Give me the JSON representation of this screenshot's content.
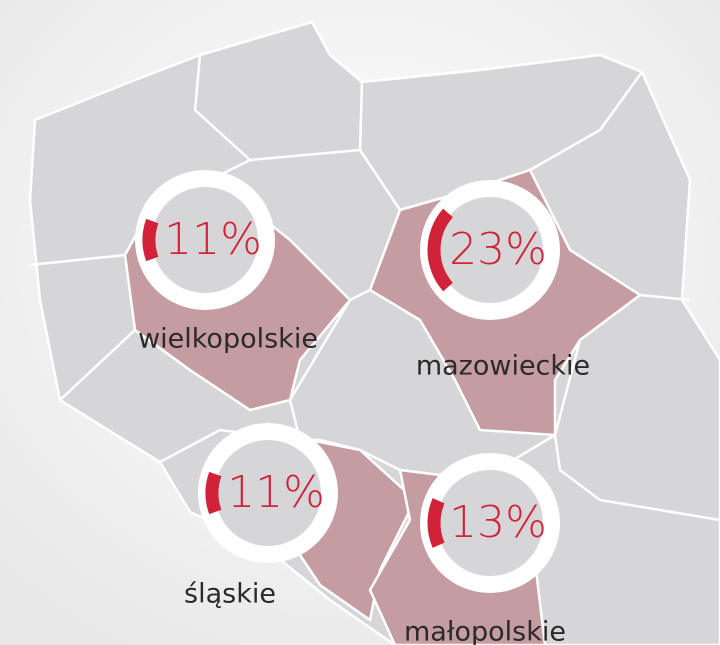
{
  "regions": [
    {
      "name": "wielkopolskie",
      "value": 11,
      "label": "11%"
    },
    {
      "name": "mazowieckie",
      "value": 23,
      "label": "23%"
    },
    {
      "name": "śląskie",
      "value": 11,
      "label": "11%"
    },
    {
      "name": "małopolskie",
      "value": 13,
      "label": "13%"
    }
  ]
}
